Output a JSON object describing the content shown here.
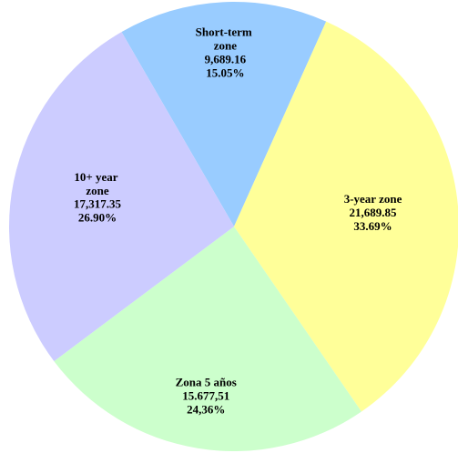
{
  "chart_data": {
    "type": "pie",
    "categories": [
      "Short-term zone",
      "3-year zone",
      "Zona 5 años",
      "10+ year zone"
    ],
    "values": [
      9689.16,
      21689.85,
      15677.51,
      17317.35
    ],
    "value_labels": [
      "9,689.16",
      "21,689.85",
      "15.677,51",
      "17,317.35"
    ],
    "percentages": [
      15.05,
      33.69,
      24.36,
      26.9
    ],
    "percentage_labels": [
      "15.05%",
      "33.69%",
      "24,36%",
      "26.90%"
    ],
    "colors": [
      "#99ccff",
      "#ffff99",
      "#ccffcc",
      "#ccccff"
    ]
  }
}
